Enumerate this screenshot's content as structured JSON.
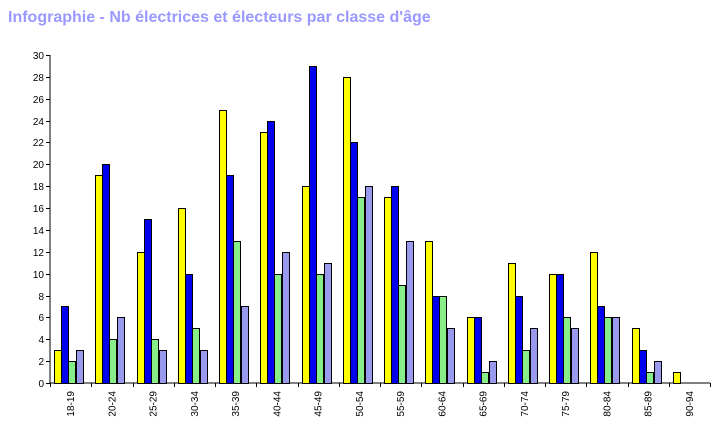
{
  "chart_data": {
    "type": "bar",
    "title": "Infographie - Nb électrices et électeurs par classe d'âge",
    "categories": [
      "18-19",
      "20-24",
      "25-29",
      "30-34",
      "35-39",
      "40-44",
      "45-49",
      "50-54",
      "55-59",
      "60-64",
      "65-69",
      "70-74",
      "75-79",
      "80-84",
      "85-89",
      "90-94"
    ],
    "series": [
      {
        "color": "#ffff00",
        "values": [
          3,
          19,
          12,
          16,
          25,
          23,
          18,
          28,
          17,
          13,
          6,
          11,
          10,
          12,
          5,
          1
        ]
      },
      {
        "color": "#0000ee",
        "values": [
          7,
          20,
          15,
          10,
          19,
          24,
          29,
          22,
          18,
          8,
          6,
          8,
          10,
          7,
          3,
          0
        ]
      },
      {
        "color": "#88ee88",
        "values": [
          2,
          4,
          4,
          5,
          13,
          10,
          10,
          17,
          9,
          8,
          1,
          3,
          6,
          6,
          1,
          0
        ]
      },
      {
        "color": "#9999ee",
        "values": [
          3,
          6,
          3,
          3,
          7,
          12,
          11,
          18,
          13,
          5,
          2,
          5,
          5,
          6,
          2,
          0
        ]
      }
    ],
    "ylim": [
      0,
      30
    ],
    "yticks": [
      "0",
      "2",
      "4",
      "6",
      "8",
      "10",
      "12",
      "14",
      "16",
      "18",
      "20",
      "22",
      "24",
      "26",
      "28",
      "30"
    ],
    "grid": false
  }
}
